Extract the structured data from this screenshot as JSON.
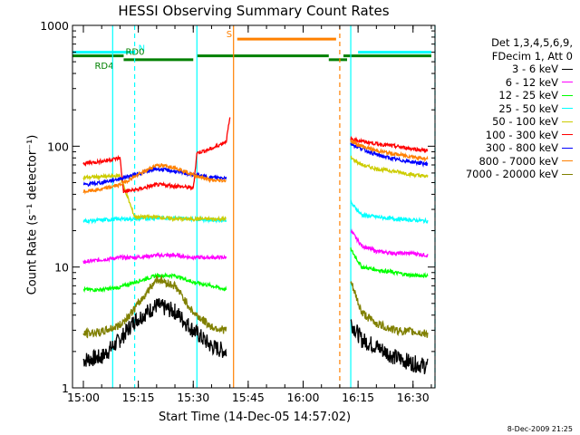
{
  "chart_data": {
    "type": "line",
    "title": "HESSI Observing Summary Count Rates",
    "xlabel": "Start Time (14-Dec-05 14:57:02)",
    "ylabel": "Count Rate (s⁻¹ detector⁻¹)",
    "yscale": "log",
    "ylim": [
      1,
      1000
    ],
    "xlim": [
      "14:57:02",
      "16:36:00"
    ],
    "x_ticks": [
      "15:00",
      "15:15",
      "15:30",
      "15:45",
      "16:00",
      "16:15",
      "16:30"
    ],
    "y_ticks": [
      "1",
      "10",
      "100",
      "1000"
    ],
    "legend_header": [
      "Det 1,3,4,5,6,9,",
      "FDecim 1, Att 0"
    ],
    "series": [
      {
        "name": "3 - 6 keV",
        "color": "#000000",
        "points": [
          [
            "15:00",
            1.7
          ],
          [
            "15:05",
            1.8
          ],
          [
            "15:10",
            2.5
          ],
          [
            "15:14",
            3.6
          ],
          [
            "15:20",
            4.8
          ],
          [
            "15:25",
            4.3
          ],
          [
            "15:30",
            3.0
          ],
          [
            "15:35",
            2.2
          ],
          [
            "15:39",
            2.0
          ],
          [
            "16:13",
            3.5
          ],
          [
            "16:16",
            2.5
          ],
          [
            "16:20",
            2.2
          ],
          [
            "16:25",
            1.8
          ],
          [
            "16:30",
            1.6
          ],
          [
            "16:34",
            1.5
          ]
        ]
      },
      {
        "name": "6 - 12 keV",
        "color": "#ff00ff",
        "points": [
          [
            "15:00",
            11
          ],
          [
            "15:05",
            11.5
          ],
          [
            "15:10",
            12
          ],
          [
            "15:14",
            12
          ],
          [
            "15:20",
            12.5
          ],
          [
            "15:25",
            12.5
          ],
          [
            "15:30",
            12
          ],
          [
            "15:35",
            12
          ],
          [
            "15:39",
            12
          ],
          [
            "16:13",
            20
          ],
          [
            "16:16",
            15
          ],
          [
            "16:20",
            13.5
          ],
          [
            "16:25",
            13
          ],
          [
            "16:30",
            13
          ],
          [
            "16:34",
            12.5
          ]
        ]
      },
      {
        "name": "12 - 25 keV",
        "color": "#00ff00",
        "points": [
          [
            "15:00",
            6.5
          ],
          [
            "15:05",
            6.5
          ],
          [
            "15:10",
            6.8
          ],
          [
            "15:14",
            7.5
          ],
          [
            "15:20",
            8.5
          ],
          [
            "15:25",
            8.5
          ],
          [
            "15:30",
            7.5
          ],
          [
            "15:35",
            7
          ],
          [
            "15:39",
            6.5
          ],
          [
            "16:13",
            14
          ],
          [
            "16:16",
            10
          ],
          [
            "16:20",
            9.5
          ],
          [
            "16:25",
            9
          ],
          [
            "16:30",
            8.5
          ],
          [
            "16:34",
            8.5
          ]
        ]
      },
      {
        "name": "25 - 50 keV",
        "color": "#00ffff",
        "points": [
          [
            "15:00",
            24
          ],
          [
            "15:05",
            24.5
          ],
          [
            "15:10",
            25
          ],
          [
            "15:14",
            25
          ],
          [
            "15:20",
            25.5
          ],
          [
            "15:25",
            25.5
          ],
          [
            "15:30",
            25
          ],
          [
            "15:35",
            24.5
          ],
          [
            "15:39",
            24.5
          ],
          [
            "16:13",
            34
          ],
          [
            "16:16",
            27
          ],
          [
            "16:20",
            26
          ],
          [
            "16:25",
            25
          ],
          [
            "16:30",
            24.5
          ],
          [
            "16:34",
            24
          ]
        ]
      },
      {
        "name": "50 - 100 keV",
        "color": "#cccc00",
        "points": [
          [
            "15:00",
            55
          ],
          [
            "15:05",
            56
          ],
          [
            "15:10",
            57
          ],
          [
            "15:14",
            26
          ],
          [
            "15:20",
            26
          ],
          [
            "15:25",
            25
          ],
          [
            "15:30",
            25
          ],
          [
            "15:35",
            25
          ],
          [
            "15:39",
            25
          ],
          [
            "16:13",
            80
          ],
          [
            "16:16",
            70
          ],
          [
            "16:20",
            65
          ],
          [
            "16:25",
            62
          ],
          [
            "16:30",
            58
          ],
          [
            "16:34",
            56
          ]
        ]
      },
      {
        "name": "100 - 300 keV",
        "color": "#ff0000",
        "points": [
          [
            "15:00",
            72
          ],
          [
            "15:05",
            75
          ],
          [
            "15:10",
            80
          ],
          [
            "15:11",
            42
          ],
          [
            "15:15",
            44
          ],
          [
            "15:20",
            48
          ],
          [
            "15:25",
            47
          ],
          [
            "15:30",
            45
          ],
          [
            "15:31",
            88
          ],
          [
            "15:35",
            95
          ],
          [
            "15:39",
            110
          ],
          [
            "15:40",
            170
          ],
          [
            "16:13",
            115
          ],
          [
            "16:16",
            110
          ],
          [
            "16:20",
            105
          ],
          [
            "16:25",
            100
          ],
          [
            "16:30",
            95
          ],
          [
            "16:34",
            92
          ]
        ]
      },
      {
        "name": "300 - 800 keV",
        "color": "#0000ff",
        "points": [
          [
            "15:00",
            48
          ],
          [
            "15:05",
            50
          ],
          [
            "15:10",
            54
          ],
          [
            "15:14",
            58
          ],
          [
            "15:20",
            65
          ],
          [
            "15:25",
            62
          ],
          [
            "15:30",
            58
          ],
          [
            "15:35",
            55
          ],
          [
            "15:39",
            55
          ],
          [
            "16:13",
            105
          ],
          [
            "16:16",
            95
          ],
          [
            "16:20",
            85
          ],
          [
            "16:25",
            78
          ],
          [
            "16:30",
            74
          ],
          [
            "16:34",
            71
          ]
        ]
      },
      {
        "name": "800 - 7000 keV",
        "color": "#ff8000",
        "points": [
          [
            "15:00",
            42
          ],
          [
            "15:05",
            44
          ],
          [
            "15:10",
            48
          ],
          [
            "15:14",
            56
          ],
          [
            "15:20",
            70
          ],
          [
            "15:25",
            67
          ],
          [
            "15:30",
            58
          ],
          [
            "15:35",
            52
          ],
          [
            "15:39",
            52
          ],
          [
            "16:13",
            110
          ],
          [
            "16:16",
            100
          ],
          [
            "16:20",
            92
          ],
          [
            "16:25",
            86
          ],
          [
            "16:30",
            82
          ],
          [
            "16:34",
            78
          ]
        ]
      },
      {
        "name": "7000 - 20000 keV",
        "color": "#808000",
        "points": [
          [
            "15:00",
            2.8
          ],
          [
            "15:05",
            2.9
          ],
          [
            "15:10",
            3.3
          ],
          [
            "15:14",
            4.5
          ],
          [
            "15:20",
            8
          ],
          [
            "15:25",
            7
          ],
          [
            "15:30",
            4.2
          ],
          [
            "15:35",
            3.2
          ],
          [
            "15:39",
            3.0
          ],
          [
            "16:13",
            7.5
          ],
          [
            "16:16",
            4.2
          ],
          [
            "16:20",
            3.4
          ],
          [
            "16:25",
            3.0
          ],
          [
            "16:30",
            2.9
          ],
          [
            "16:34",
            2.8
          ]
        ]
      }
    ],
    "vertical_markers": [
      {
        "time": "15:08",
        "color": "#00ffff",
        "style": "solid"
      },
      {
        "time": "15:14",
        "color": "#00ffff",
        "style": "dashed"
      },
      {
        "time": "15:31",
        "color": "#00ffff",
        "style": "solid"
      },
      {
        "time": "15:41",
        "color": "#ff8000",
        "style": "solid"
      },
      {
        "time": "16:10",
        "color": "#ff8000",
        "style": "dashed"
      },
      {
        "time": "16:13",
        "color": "#00ffff",
        "style": "solid"
      },
      {
        "time": "16:36",
        "color": "#00ffff",
        "style": "dashed"
      }
    ],
    "flag_bars": [
      {
        "label": "N",
        "color": "#00ffff",
        "y": 600,
        "segments": [
          [
            "14:57:02",
            "15:14"
          ],
          [
            "16:15",
            "16:35"
          ]
        ]
      },
      {
        "label": "S",
        "color": "#ff8000",
        "y": 770,
        "segments": [
          [
            "15:42",
            "16:09"
          ]
        ]
      },
      {
        "label": "RD0",
        "color": "#008000",
        "y": 560,
        "segments": [
          [
            "14:57:02",
            "15:11"
          ],
          [
            "15:31",
            "16:07"
          ],
          [
            "16:11",
            "16:35"
          ]
        ]
      },
      {
        "label": "RD4",
        "color": "#008000",
        "y": 520,
        "segments": [
          [
            "15:11",
            "15:30"
          ],
          [
            "16:07",
            "16:12"
          ]
        ]
      }
    ],
    "footer_date": "8-Dec-2009 21:25"
  }
}
